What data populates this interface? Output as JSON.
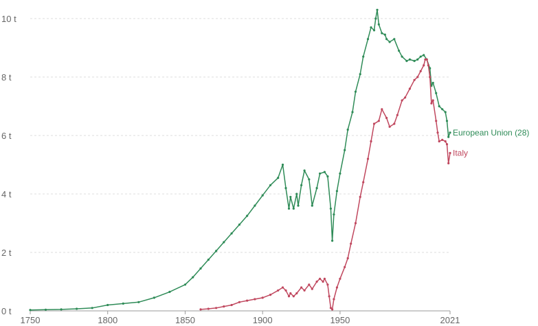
{
  "chart_data": {
    "type": "line",
    "title": "",
    "xlabel": "",
    "ylabel": "",
    "xlim": [
      1750,
      2021
    ],
    "ylim": [
      0,
      10
    ],
    "x_ticks": [
      {
        "value": 1750,
        "label": "1750"
      },
      {
        "value": 1800,
        "label": "1800"
      },
      {
        "value": 1850,
        "label": "1850"
      },
      {
        "value": 1900,
        "label": "1900"
      },
      {
        "value": 1950,
        "label": "1950"
      },
      {
        "value": 2021,
        "label": "2021"
      }
    ],
    "y_ticks": [
      {
        "value": 0,
        "label": "0 t"
      },
      {
        "value": 2,
        "label": "2 t"
      },
      {
        "value": 4,
        "label": "4 t"
      },
      {
        "value": 6,
        "label": "6 t"
      },
      {
        "value": 8,
        "label": "8 t"
      },
      {
        "value": 10,
        "label": "10 t"
      }
    ],
    "grid": true,
    "legend": "inline labels at line ends (right)",
    "series": [
      {
        "name": "European Union (28)",
        "color": "#2e8b57",
        "points": [
          [
            1750,
            0.03
          ],
          [
            1760,
            0.04
          ],
          [
            1770,
            0.05
          ],
          [
            1780,
            0.07
          ],
          [
            1790,
            0.1
          ],
          [
            1800,
            0.2
          ],
          [
            1810,
            0.25
          ],
          [
            1820,
            0.3
          ],
          [
            1830,
            0.45
          ],
          [
            1840,
            0.65
          ],
          [
            1850,
            0.9
          ],
          [
            1855,
            1.15
          ],
          [
            1860,
            1.45
          ],
          [
            1865,
            1.75
          ],
          [
            1870,
            2.05
          ],
          [
            1875,
            2.35
          ],
          [
            1880,
            2.65
          ],
          [
            1885,
            2.95
          ],
          [
            1890,
            3.25
          ],
          [
            1895,
            3.6
          ],
          [
            1900,
            3.95
          ],
          [
            1905,
            4.3
          ],
          [
            1910,
            4.55
          ],
          [
            1913,
            5.0
          ],
          [
            1915,
            4.2
          ],
          [
            1917,
            3.5
          ],
          [
            1918,
            3.9
          ],
          [
            1920,
            3.5
          ],
          [
            1922,
            4.0
          ],
          [
            1923,
            3.6
          ],
          [
            1925,
            4.3
          ],
          [
            1927,
            4.8
          ],
          [
            1930,
            4.5
          ],
          [
            1932,
            3.6
          ],
          [
            1935,
            4.2
          ],
          [
            1937,
            4.7
          ],
          [
            1940,
            4.75
          ],
          [
            1942,
            4.6
          ],
          [
            1944,
            3.5
          ],
          [
            1945,
            2.4
          ],
          [
            1946,
            3.3
          ],
          [
            1948,
            4.1
          ],
          [
            1950,
            4.7
          ],
          [
            1953,
            5.5
          ],
          [
            1955,
            6.2
          ],
          [
            1958,
            6.8
          ],
          [
            1960,
            7.5
          ],
          [
            1963,
            8.1
          ],
          [
            1965,
            8.7
          ],
          [
            1968,
            9.3
          ],
          [
            1970,
            9.7
          ],
          [
            1972,
            9.6
          ],
          [
            1973,
            10.0
          ],
          [
            1974,
            10.3
          ],
          [
            1975,
            9.8
          ],
          [
            1977,
            9.5
          ],
          [
            1979,
            9.45
          ],
          [
            1980,
            9.3
          ],
          [
            1982,
            9.2
          ],
          [
            1985,
            9.3
          ],
          [
            1988,
            8.9
          ],
          [
            1990,
            8.7
          ],
          [
            1993,
            8.55
          ],
          [
            1995,
            8.6
          ],
          [
            1998,
            8.55
          ],
          [
            2000,
            8.6
          ],
          [
            2002,
            8.7
          ],
          [
            2004,
            8.75
          ],
          [
            2006,
            8.6
          ],
          [
            2008,
            8.3
          ],
          [
            2009,
            7.7
          ],
          [
            2010,
            7.8
          ],
          [
            2012,
            7.45
          ],
          [
            2014,
            7.0
          ],
          [
            2016,
            6.9
          ],
          [
            2018,
            6.8
          ],
          [
            2019,
            6.5
          ],
          [
            2020,
            5.95
          ],
          [
            2021,
            6.1
          ]
        ]
      },
      {
        "name": "Italy",
        "color": "#c0475e",
        "points": [
          [
            1860,
            0.05
          ],
          [
            1865,
            0.07
          ],
          [
            1870,
            0.1
          ],
          [
            1875,
            0.15
          ],
          [
            1880,
            0.2
          ],
          [
            1885,
            0.3
          ],
          [
            1890,
            0.35
          ],
          [
            1895,
            0.4
          ],
          [
            1900,
            0.45
          ],
          [
            1905,
            0.55
          ],
          [
            1910,
            0.7
          ],
          [
            1913,
            0.8
          ],
          [
            1915,
            0.7
          ],
          [
            1917,
            0.5
          ],
          [
            1918,
            0.6
          ],
          [
            1920,
            0.5
          ],
          [
            1922,
            0.6
          ],
          [
            1925,
            0.8
          ],
          [
            1927,
            0.7
          ],
          [
            1930,
            0.9
          ],
          [
            1932,
            0.75
          ],
          [
            1935,
            1.0
          ],
          [
            1937,
            1.1
          ],
          [
            1939,
            1.0
          ],
          [
            1940,
            1.1
          ],
          [
            1942,
            0.9
          ],
          [
            1943,
            0.5
          ],
          [
            1944,
            0.1
          ],
          [
            1945,
            0.05
          ],
          [
            1946,
            0.4
          ],
          [
            1948,
            0.8
          ],
          [
            1950,
            1.1
          ],
          [
            1953,
            1.5
          ],
          [
            1955,
            1.8
          ],
          [
            1957,
            2.3
          ],
          [
            1960,
            3.0
          ],
          [
            1963,
            3.9
          ],
          [
            1965,
            4.4
          ],
          [
            1968,
            5.2
          ],
          [
            1970,
            5.8
          ],
          [
            1972,
            6.4
          ],
          [
            1975,
            6.5
          ],
          [
            1977,
            6.9
          ],
          [
            1980,
            6.6
          ],
          [
            1982,
            6.3
          ],
          [
            1985,
            6.4
          ],
          [
            1987,
            6.7
          ],
          [
            1990,
            7.2
          ],
          [
            1992,
            7.3
          ],
          [
            1995,
            7.6
          ],
          [
            1998,
            7.9
          ],
          [
            2000,
            8.0
          ],
          [
            2002,
            8.2
          ],
          [
            2004,
            8.4
          ],
          [
            2005,
            8.6
          ],
          [
            2006,
            8.6
          ],
          [
            2007,
            8.4
          ],
          [
            2008,
            8.0
          ],
          [
            2009,
            7.1
          ],
          [
            2010,
            7.2
          ],
          [
            2012,
            6.5
          ],
          [
            2013,
            6.1
          ],
          [
            2014,
            5.8
          ],
          [
            2016,
            5.85
          ],
          [
            2018,
            5.8
          ],
          [
            2019,
            5.7
          ],
          [
            2020,
            5.05
          ],
          [
            2021,
            5.4
          ]
        ]
      }
    ]
  }
}
